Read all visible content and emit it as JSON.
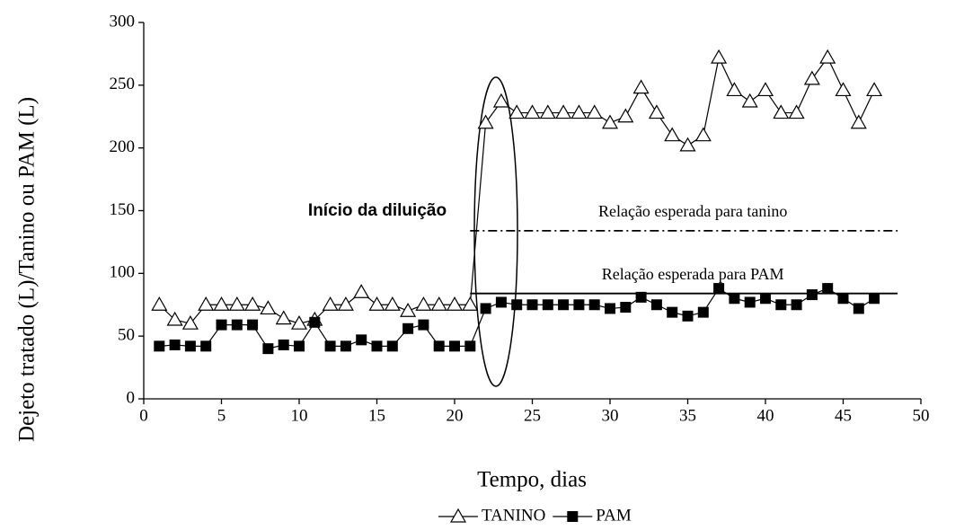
{
  "chart_data": {
    "type": "line",
    "xlabel": "Tempo, dias",
    "ylabel": "Dejeto tratado (L)/Tanino ou PAM (L)",
    "xlim": [
      0,
      50
    ],
    "xticks": [
      0,
      5,
      10,
      15,
      20,
      25,
      30,
      35,
      40,
      45,
      50
    ],
    "ylim": [
      0,
      300
    ],
    "yticks": [
      0,
      50,
      100,
      150,
      200,
      250,
      300
    ],
    "grid": false,
    "x": [
      1,
      2,
      3,
      4,
      5,
      6,
      7,
      8,
      9,
      10,
      11,
      12,
      13,
      14,
      15,
      16,
      17,
      18,
      19,
      20,
      21,
      22,
      23,
      24,
      25,
      26,
      27,
      28,
      29,
      30,
      31,
      32,
      33,
      34,
      35,
      36,
      37,
      38,
      39,
      40,
      41,
      42,
      43,
      44,
      45,
      46,
      47
    ],
    "series": [
      {
        "name": "TANINO",
        "color": "#000000",
        "marker": "triangle",
        "values": [
          75,
          63,
          60,
          75,
          75,
          75,
          75,
          72,
          64,
          60,
          63,
          75,
          75,
          85,
          75,
          75,
          70,
          75,
          75,
          75,
          75,
          220,
          237,
          228,
          228,
          228,
          228,
          228,
          228,
          220,
          225,
          248,
          228,
          210,
          202,
          210,
          272,
          246,
          237,
          246,
          228,
          228,
          255,
          272,
          246,
          220,
          246
        ]
      },
      {
        "name": "PAM",
        "color": "#000000",
        "marker": "square",
        "values": [
          42,
          43,
          42,
          42,
          59,
          59,
          59,
          40,
          43,
          42,
          61,
          42,
          42,
          47,
          42,
          42,
          56,
          59,
          42,
          42,
          42,
          72,
          77,
          75,
          75,
          75,
          75,
          75,
          75,
          72,
          73,
          81,
          75,
          69,
          66,
          69,
          88,
          80,
          77,
          80,
          75,
          75,
          83,
          88,
          80,
          72,
          80
        ]
      }
    ],
    "reference_lines": [
      {
        "label": "Relação esperada para tanino",
        "y": 134,
        "x": [
          21,
          48.5
        ],
        "style": "dashdot"
      },
      {
        "label": "Relação esperada para PAM",
        "y": 84,
        "x": [
          21,
          48.5
        ],
        "style": "solid"
      }
    ],
    "annotation": "Início da diluição",
    "legend": "bottom"
  }
}
